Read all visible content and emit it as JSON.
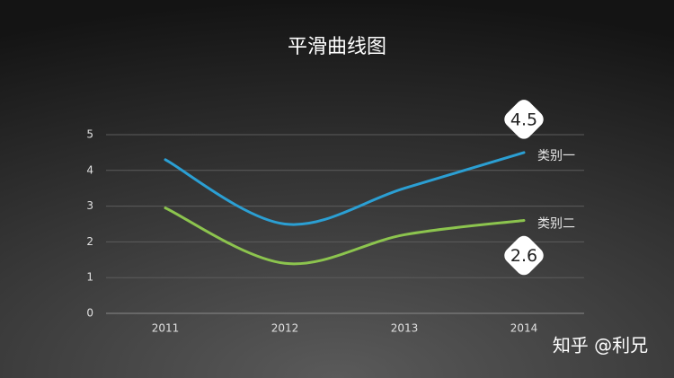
{
  "chart_data": {
    "type": "line",
    "title": "平滑曲线图",
    "categories": [
      "2011",
      "2012",
      "2013",
      "2014"
    ],
    "series": [
      {
        "name": "类别一",
        "color": "#2b9fd3",
        "values": [
          4.3,
          2.5,
          3.5,
          4.5
        ]
      },
      {
        "name": "类别二",
        "color": "#8cc44e",
        "values": [
          2.95,
          1.4,
          2.2,
          2.6
        ]
      }
    ],
    "ylim": [
      0,
      5
    ],
    "yticks": [
      0,
      1,
      2,
      3,
      4,
      5
    ],
    "grid": true,
    "smooth": true
  },
  "watermark": "知乎 @利兄"
}
